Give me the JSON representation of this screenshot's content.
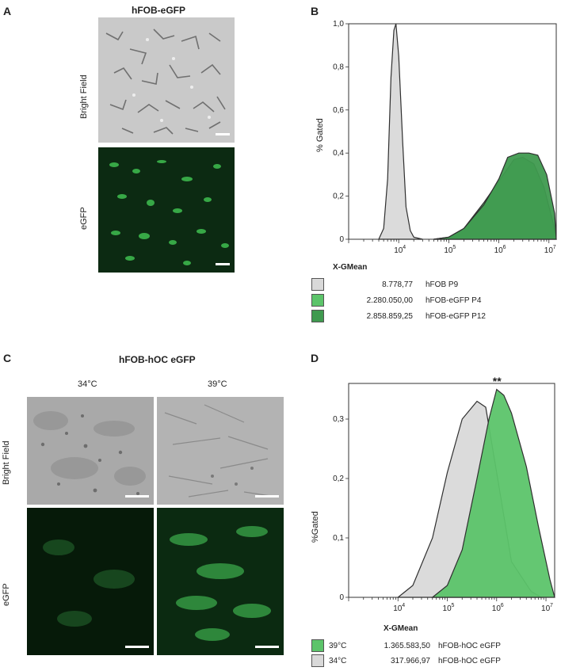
{
  "panelA": {
    "label": "A",
    "title": "hFOB-eGFP",
    "row_labels": [
      "Bright Field",
      "eGFP"
    ]
  },
  "panelB": {
    "label": "B",
    "ylabel": "% Gated",
    "xlabel": "X-GMean",
    "yticks": [
      "0",
      "0,2",
      "0,4",
      "0,6",
      "0,8",
      "1,0"
    ],
    "xticks": [
      "10",
      "10",
      "10",
      "10"
    ],
    "xtick_exps": [
      "4",
      "5",
      "6",
      "7"
    ],
    "legend": [
      {
        "value": "8.778,77",
        "name": "hFOB P9",
        "color": "#d9d9d9"
      },
      {
        "value": "2.280.050,00",
        "name": "hFOB-eGFP P4",
        "color": "#5cc46a"
      },
      {
        "value": "2.858.859,25",
        "name": "hFOB-eGFP P12",
        "color": "#3f9a4f"
      }
    ]
  },
  "panelC": {
    "label": "C",
    "title": "hFOB-hOC  eGFP",
    "col_labels": [
      "34°C",
      "39°C"
    ],
    "row_labels": [
      "Bright Field",
      "eGFP"
    ]
  },
  "panelD": {
    "label": "D",
    "ylabel": "%Gated",
    "xlabel": "X-GMean",
    "annotation": "**",
    "yticks": [
      "0",
      "0,1",
      "0,2",
      "0,3"
    ],
    "xticks": [
      "10",
      "10",
      "10",
      "10"
    ],
    "xtick_exps": [
      "4",
      "5",
      "6",
      "7"
    ],
    "legend": [
      {
        "temp": "39°C",
        "value": "1.365.583,50",
        "name": "hFOB-hOC eGFP",
        "color": "#5cc46a"
      },
      {
        "temp": "34°C",
        "value": "317.966,97",
        "name": "hFOB-hOC eGFP",
        "color": "#d9d9d9"
      }
    ]
  },
  "chart_data": [
    {
      "type": "area",
      "panel": "B",
      "xlabel": "X-GMean",
      "ylabel": "% Gated",
      "x_scale": "log",
      "xlim": [
        1000,
        14000000
      ],
      "ylim": [
        0,
        1.0
      ],
      "series": [
        {
          "name": "hFOB P9",
          "color": "#d9d9d9",
          "x": [
            4000,
            5000,
            6000,
            7000,
            8000,
            8800,
            10000,
            12000,
            14000,
            17000,
            20000,
            30000
          ],
          "y": [
            0,
            0.05,
            0.28,
            0.75,
            0.97,
            1.0,
            0.85,
            0.45,
            0.15,
            0.04,
            0.01,
            0
          ]
        },
        {
          "name": "hFOB-eGFP P4",
          "color": "#5cc46a",
          "x": [
            50000,
            100000,
            200000,
            500000,
            1000000,
            2000000,
            3000000,
            5000000,
            8000000,
            12000000,
            14000000
          ],
          "y": [
            0,
            0.01,
            0.05,
            0.17,
            0.27,
            0.37,
            0.38,
            0.35,
            0.24,
            0.08,
            0
          ]
        },
        {
          "name": "hFOB-eGFP P12",
          "color": "#3f9a4f",
          "x": [
            50000,
            100000,
            200000,
            500000,
            1000000,
            1500000,
            2500000,
            4000000,
            6000000,
            9000000,
            13000000,
            14000000
          ],
          "y": [
            0,
            0.01,
            0.05,
            0.16,
            0.28,
            0.38,
            0.4,
            0.4,
            0.39,
            0.3,
            0.12,
            0
          ]
        }
      ]
    },
    {
      "type": "area",
      "panel": "D",
      "xlabel": "X-GMean",
      "ylabel": "%Gated",
      "x_scale": "log",
      "xlim": [
        1000,
        15000000
      ],
      "ylim": [
        0,
        0.36
      ],
      "series": [
        {
          "name": "hFOB-hOC eGFP 34°C",
          "color": "#d9d9d9",
          "x": [
            10000,
            20000,
            50000,
            100000,
            200000,
            400000,
            600000,
            1000000,
            2000000,
            5000000,
            8000000
          ],
          "y": [
            0,
            0.02,
            0.1,
            0.21,
            0.3,
            0.33,
            0.32,
            0.21,
            0.06,
            0.01,
            0
          ]
        },
        {
          "name": "hFOB-hOC eGFP 39°C",
          "color": "#5cc46a",
          "x": [
            50000,
            100000,
            200000,
            400000,
            700000,
            1000000,
            1400000,
            2000000,
            4000000,
            7000000,
            12000000,
            15000000
          ],
          "y": [
            0,
            0.02,
            0.08,
            0.2,
            0.3,
            0.35,
            0.34,
            0.31,
            0.22,
            0.12,
            0.03,
            0
          ]
        }
      ]
    }
  ]
}
